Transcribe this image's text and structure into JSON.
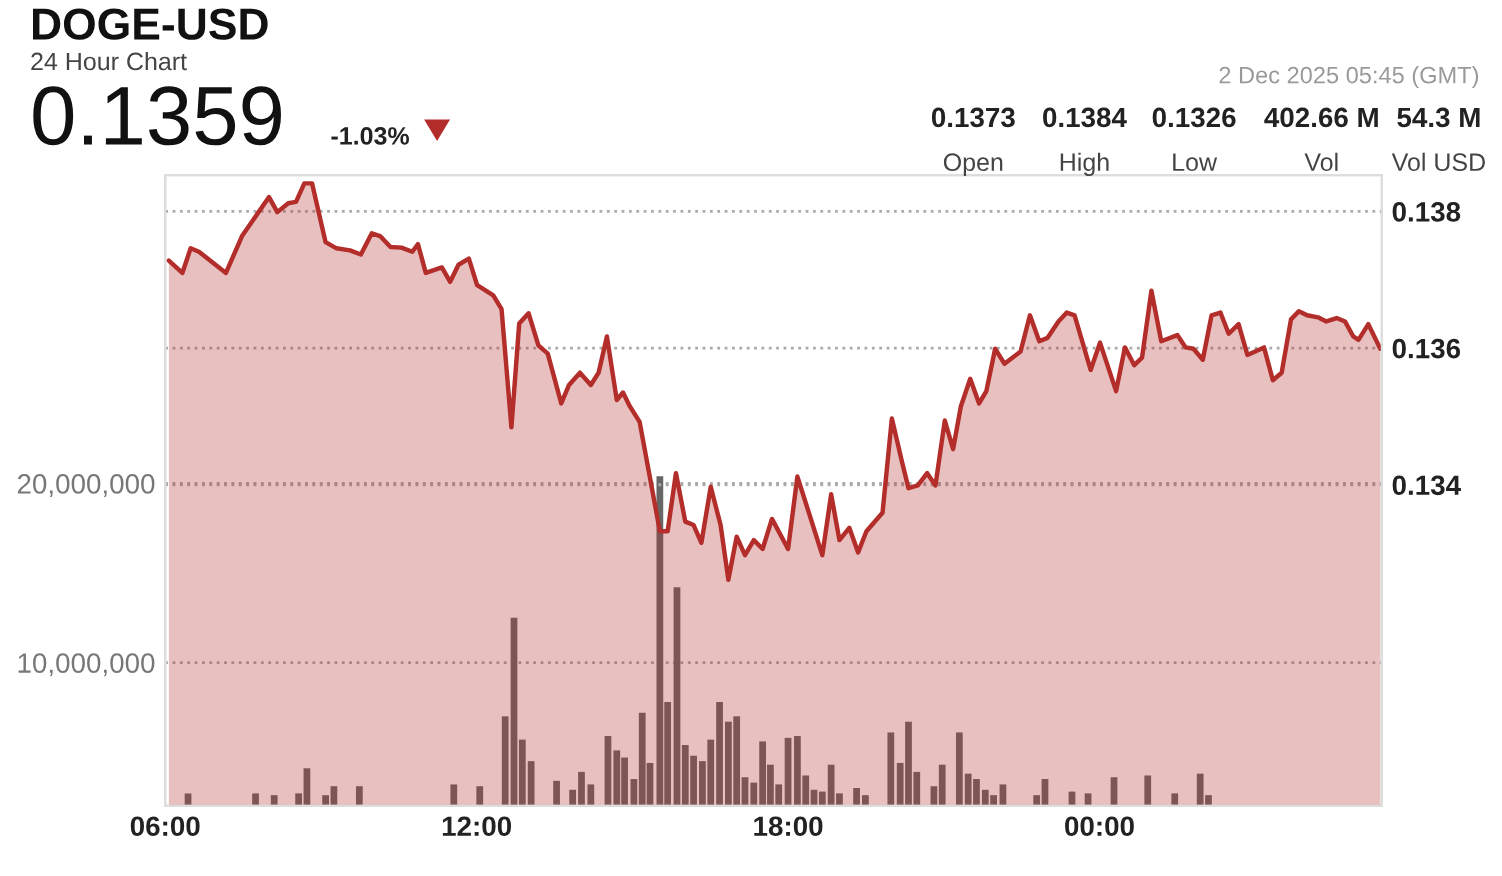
{
  "chart_data": {
    "type": "area",
    "title": "DOGE-USD",
    "subtitle": "24 Hour Chart",
    "annotations": [
      "0.1359",
      "-1.03%",
      "2 Dec 2025 05:45 (GMT)",
      "0.1373",
      "Open",
      "0.1384",
      "High",
      "0.1326",
      "Low",
      "402.66 M",
      "Vol",
      "54.3 M",
      "Vol USD"
    ],
    "xlim": [
      6.0,
      29.44
    ],
    "xticks": [
      {
        "value": 6,
        "label": "06:00"
      },
      {
        "value": 12,
        "label": "12:00"
      },
      {
        "value": 18,
        "label": "18:00"
      },
      {
        "value": 24,
        "label": "00:00"
      }
    ],
    "ylim": [
      0.1293,
      0.13853
    ],
    "yticks": [
      0.134,
      0.136,
      0.138
    ],
    "y2lim": [
      2000000,
      37200000
    ],
    "y2ticks": [
      {
        "value": 10000000,
        "label": "10,000,000"
      },
      {
        "value": 20000000,
        "label": "20,000,000"
      }
    ],
    "grid": "y",
    "line_style": "solid",
    "series": [
      {
        "color": "#b32d2a",
        "x": [
          6.07,
          6.33,
          6.49,
          6.65,
          7.17,
          7.48,
          8.0,
          8.16,
          8.37,
          8.52,
          8.68,
          8.83,
          9.09,
          9.3,
          9.56,
          9.77,
          9.98,
          10.14,
          10.34,
          10.55,
          10.76,
          10.87,
          11.02,
          11.33,
          11.49,
          11.65,
          11.85,
          12.01,
          12.32,
          12.48,
          12.67,
          12.82,
          13.0,
          13.19,
          13.37,
          13.63,
          13.78,
          13.99,
          14.2,
          14.35,
          14.51,
          14.7,
          14.82,
          14.95,
          15.14,
          15.53,
          15.68,
          15.84,
          16.02,
          16.18,
          16.33,
          16.51,
          16.7,
          16.85,
          17.01,
          17.17,
          17.34,
          17.51,
          17.69,
          18.0,
          18.18,
          18.66,
          18.83,
          18.99,
          19.18,
          19.35,
          19.51,
          19.82,
          20.0,
          20.19,
          20.32,
          20.5,
          20.68,
          20.84,
          21.02,
          21.18,
          21.33,
          21.51,
          21.68,
          21.82,
          21.99,
          22.17,
          22.48,
          22.66,
          22.84,
          23.0,
          23.21,
          23.37,
          23.52,
          23.83,
          24.01,
          24.32,
          24.49,
          24.67,
          24.82,
          25.0,
          25.19,
          25.5,
          25.66,
          25.81,
          25.99,
          26.16,
          26.33,
          26.49,
          26.68,
          26.85,
          27.17,
          27.34,
          27.51,
          27.69,
          27.84,
          28.0,
          28.21,
          28.37,
          28.57,
          28.73,
          28.89,
          28.99,
          29.18,
          29.41
        ],
        "values": [
          0.13728,
          0.1371,
          0.13746,
          0.13741,
          0.1371,
          0.13764,
          0.13821,
          0.13799,
          0.13812,
          0.13814,
          0.13841,
          0.13841,
          0.13755,
          0.13746,
          0.13743,
          0.13737,
          0.13768,
          0.13764,
          0.13748,
          0.13747,
          0.13741,
          0.13752,
          0.1371,
          0.13718,
          0.13697,
          0.13722,
          0.13731,
          0.13692,
          0.13677,
          0.13657,
          0.13484,
          0.13636,
          0.13651,
          0.13604,
          0.13592,
          0.13519,
          0.13546,
          0.13564,
          0.13546,
          0.13564,
          0.13617,
          0.13524,
          0.13535,
          0.13515,
          0.13492,
          0.13332,
          0.13332,
          0.13417,
          0.13346,
          0.13341,
          0.13315,
          0.13397,
          0.13341,
          0.13261,
          0.13324,
          0.13297,
          0.13319,
          0.13306,
          0.1335,
          0.13306,
          0.13412,
          0.13297,
          0.13386,
          0.13319,
          0.13337,
          0.13301,
          0.13332,
          0.13359,
          0.13497,
          0.13435,
          0.13395,
          0.13399,
          0.13417,
          0.13399,
          0.13494,
          0.13452,
          0.13515,
          0.13555,
          0.13519,
          0.13537,
          0.13599,
          0.13577,
          0.13595,
          0.13648,
          0.1361,
          0.13615,
          0.13639,
          0.13652,
          0.13648,
          0.13568,
          0.13608,
          0.13537,
          0.13601,
          0.13575,
          0.13586,
          0.13684,
          0.1361,
          0.13619,
          0.13601,
          0.13599,
          0.13583,
          0.13648,
          0.13652,
          0.13621,
          0.13635,
          0.1359,
          0.13601,
          0.13553,
          0.13564,
          0.13642,
          0.13654,
          0.13648,
          0.13645,
          0.13639,
          0.13644,
          0.13639,
          0.13617,
          0.13612,
          0.13635,
          0.13599
        ]
      },
      {
        "type": "bar",
        "axis": "y2",
        "color": "#666666",
        "x": [
          6.44,
          7.74,
          8.1,
          8.57,
          8.73,
          9.09,
          9.25,
          9.74,
          11.56,
          12.06,
          12.55,
          12.72,
          12.88,
          13.05,
          13.54,
          13.85,
          14.02,
          14.2,
          14.53,
          14.7,
          14.85,
          15.03,
          15.19,
          15.34,
          15.53,
          15.68,
          15.86,
          16.02,
          16.18,
          16.35,
          16.51,
          16.68,
          16.85,
          17.01,
          17.17,
          17.34,
          17.51,
          17.66,
          17.82,
          18.0,
          18.18,
          18.34,
          18.5,
          18.66,
          18.83,
          18.99,
          19.32,
          19.49,
          19.98,
          20.16,
          20.32,
          20.48,
          20.81,
          20.97,
          21.3,
          21.47,
          21.63,
          21.8,
          21.96,
          22.14,
          22.79,
          22.95,
          23.47,
          23.78,
          24.28,
          24.93,
          25.45,
          25.94,
          26.1
        ],
        "values": [
          2700000,
          2700000,
          2600000,
          2700000,
          4100000,
          2600000,
          3100000,
          3100000,
          3200000,
          3100000,
          7000000,
          12500000,
          5700000,
          4500000,
          3400000,
          2900000,
          3900000,
          3200000,
          5900000,
          5100000,
          4700000,
          3500000,
          7200000,
          4400000,
          20400000,
          7800000,
          14200000,
          5400000,
          4800000,
          4500000,
          5700000,
          7800000,
          6700000,
          7000000,
          3600000,
          3300000,
          5600000,
          4300000,
          3200000,
          5800000,
          5900000,
          3700000,
          2900000,
          2800000,
          4300000,
          2700000,
          3000000,
          2600000,
          6100000,
          4400000,
          6700000,
          3900000,
          3100000,
          4300000,
          6100000,
          3800000,
          3500000,
          2900000,
          2600000,
          3200000,
          2600000,
          3500000,
          2800000,
          2700000,
          3600000,
          3700000,
          2700000,
          3800000,
          2600000
        ]
      }
    ]
  }
}
